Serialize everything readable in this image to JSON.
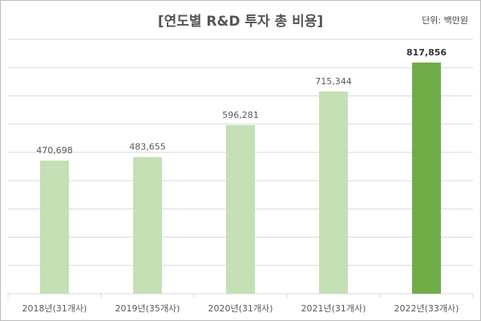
{
  "chart_data": {
    "type": "bar",
    "title": "[연도별 R&D 투자 총 비용]",
    "unit_label": "단위: 백만원",
    "categories": [
      "2018년(31개사)",
      "2019년(35개사)",
      "2020년(31개사)",
      "2021년(31개사)",
      "2022년(33개사)"
    ],
    "values": [
      470698,
      483655,
      596281,
      715344,
      817856
    ],
    "value_labels": [
      "470,698",
      "483,655",
      "596,281",
      "715,344",
      "817,856"
    ],
    "ylim": [
      0,
      900000
    ],
    "grid_step": 100000,
    "grid": true,
    "colors": {
      "default": "#c5e0b4",
      "highlight": "#70ad47",
      "grid": "#d9d9d9",
      "text": "#595959"
    },
    "highlight_index": 4
  }
}
